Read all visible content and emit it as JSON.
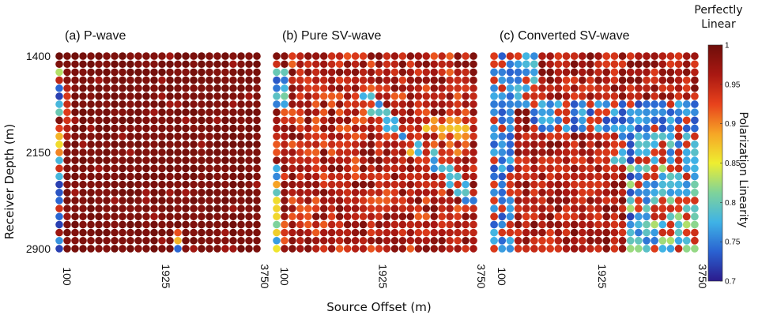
{
  "figure": {
    "xlabel": "Source Offset (m)",
    "ylabel": "Receiver Depth (m)",
    "colorbar_label": "Polarization Linearity",
    "colorbar_title_line1": "Perfectly",
    "colorbar_title_line2": "Linear"
  },
  "chart_data": [
    {
      "type": "heatmap",
      "title": "(a) P-wave",
      "xlabel": "Source Offset (m)",
      "ylabel": "Receiver Depth (m)",
      "x_ticks": [
        "100",
        "1925",
        "3750"
      ],
      "y_ticks": [
        "1400",
        "2150",
        "2900"
      ],
      "grid_size": [
        25,
        26
      ],
      "z_range": [
        0.7,
        1.0
      ],
      "description_of_values": "mostly 0.98-1.0; leftmost column 0.72-0.99 with many low values; isolated 0.85-0.93 cells near bottom",
      "left_column_values": [
        1.0,
        0.99,
        0.83,
        0.95,
        0.74,
        0.72,
        0.78,
        0.8,
        0.99,
        0.93,
        0.88,
        0.86,
        0.9,
        0.78,
        0.94,
        0.78,
        0.72,
        0.73,
        0.74,
        0.94,
        0.74,
        0.72,
        0.97,
        0.76,
        0.72
      ]
    },
    {
      "type": "heatmap",
      "title": "(b) Pure SV-wave",
      "xlabel": "Source Offset (m)",
      "ylabel": "",
      "x_ticks": [
        "100",
        "1925",
        "3750"
      ],
      "y_ticks": [],
      "grid_size": [
        25,
        26
      ],
      "z_range": [
        0.7,
        1.0
      ],
      "description_of_values": "mixed 0.93-1.0 with streaks of 0.7-0.88 at left edge and a diagonal low band from center to right"
    },
    {
      "type": "heatmap",
      "title": "(c) Converted SV-wave",
      "xlabel": "Source Offset (m)",
      "ylabel": "",
      "x_ticks": [
        "100",
        "1925",
        "3750"
      ],
      "y_ticks": [],
      "grid_size": [
        25,
        26
      ],
      "z_range": [
        0.7,
        1.0
      ],
      "description_of_values": "left columns and a horizontal band near 1700-1900 m plus lower-right region dominated by 0.7-0.78; elsewhere 0.93-1.0"
    }
  ],
  "colorbar": {
    "min": 0.7,
    "max": 1.0,
    "ticks": [
      "1",
      "0.95",
      "0.9",
      "0.85",
      "0.8",
      "0.75",
      "0.7"
    ],
    "colors": [
      "#2b1a8c",
      "#2a62d1",
      "#3fb3e6",
      "#7fd39a",
      "#eeee30",
      "#f6a526",
      "#e8421c",
      "#a91812",
      "#6e0e0a"
    ]
  }
}
